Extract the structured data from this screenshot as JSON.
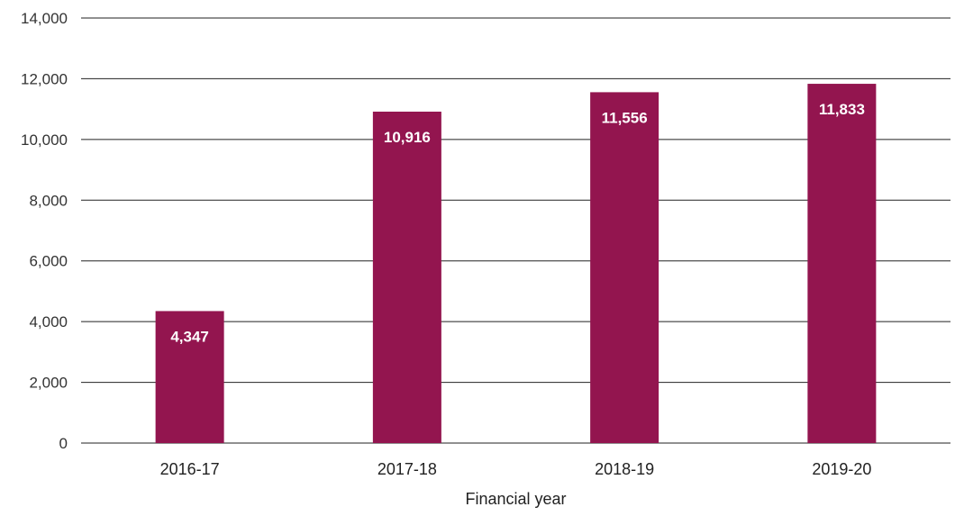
{
  "chart_data": {
    "type": "bar",
    "categories": [
      "2016-17",
      "2017-18",
      "2018-19",
      "2019-20"
    ],
    "values": [
      4347,
      10916,
      11556,
      11833
    ],
    "data_labels": [
      "4,347",
      "10,916",
      "11,556",
      "11,833"
    ],
    "title": "",
    "xlabel": "Financial year",
    "ylabel": "",
    "ylim": [
      0,
      14000
    ],
    "yticks": [
      0,
      2000,
      4000,
      6000,
      8000,
      10000,
      12000,
      14000
    ],
    "ytick_labels": [
      "0",
      "2,000",
      "4,000",
      "6,000",
      "8,000",
      "10,000",
      "12,000",
      "14,000"
    ],
    "grid": true,
    "legend": "none",
    "bar_color": "#93154f",
    "label_color": "#ffffff"
  }
}
